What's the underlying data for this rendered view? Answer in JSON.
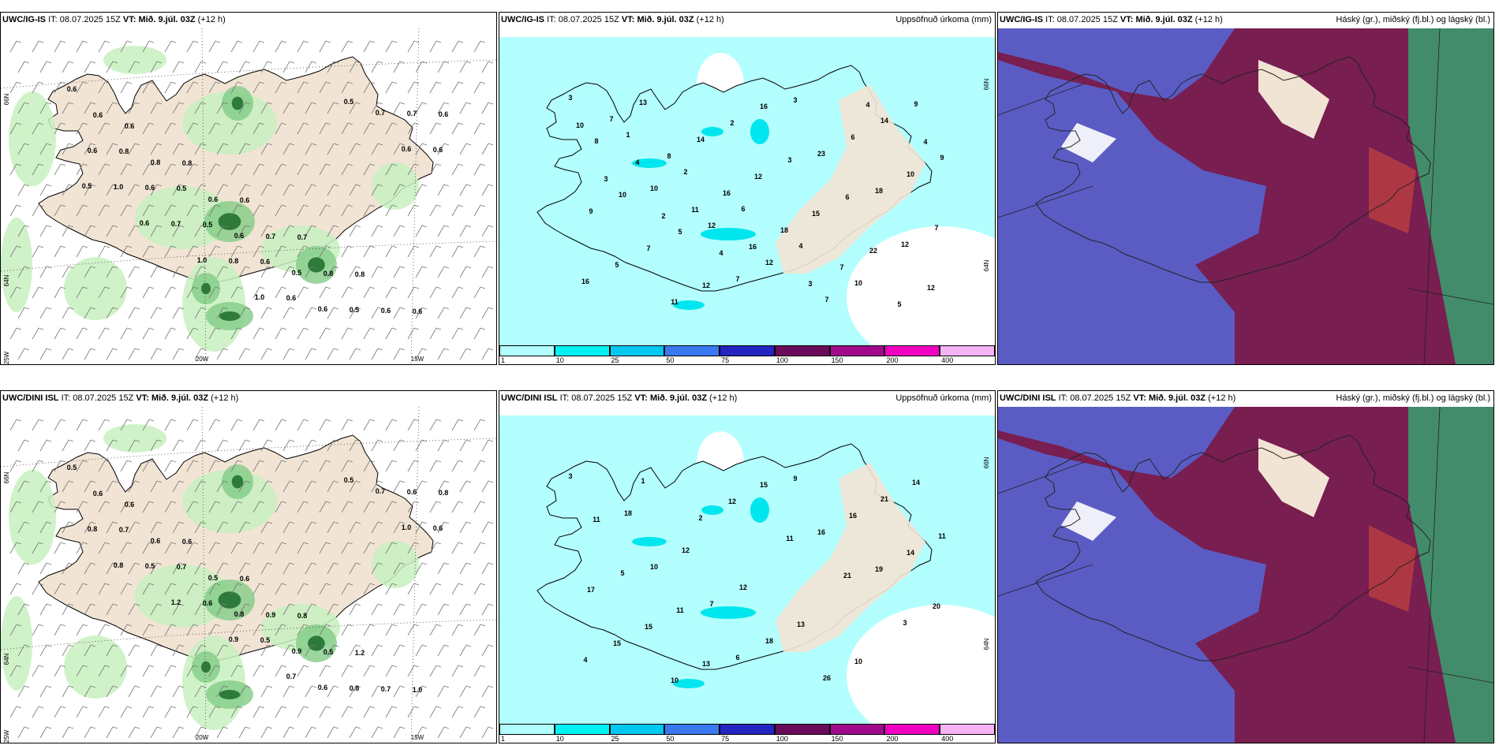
{
  "panels": [
    {
      "id": "ig-precip",
      "model": "UWC/IG-IS",
      "it_label": "IT:",
      "it": "08.07.2025 15Z",
      "vt_label": "VT:",
      "vt": "Mið. 9.júl. 03Z",
      "lead": "(+12 h)",
      "right_title": "",
      "kind": "wind",
      "values": [
        "0.6",
        "0.6",
        "0.8",
        "0.6",
        "0.7",
        "0.8",
        "0.6",
        "0.6",
        "0.8",
        "0.6",
        "0.7",
        "0.8",
        "0.6",
        "0.6",
        "0.8",
        "0.5",
        "0.6",
        "0.5",
        "0.5",
        "0.7",
        "0.6",
        "0.6",
        "0.5",
        "0.6",
        "0.6",
        "0.7",
        "0.6",
        "1.0",
        "0.7",
        "0.8",
        "0.6",
        "0.5",
        "0.6",
        "0.5",
        "0.6",
        "1.0",
        "1.0"
      ],
      "grid": [
        "20W",
        "15W",
        "66N",
        "64N",
        "25W"
      ]
    },
    {
      "id": "ig-accum",
      "model": "UWC/IG-IS",
      "it_label": "IT:",
      "it": "08.07.2025 15Z",
      "vt_label": "VT:",
      "vt": "Mið. 9.júl. 03Z",
      "lead": "(+12 h)",
      "right_title": "Uppsöfnuð úrkoma (mm)",
      "kind": "precip",
      "values": [
        "3",
        "1",
        "2",
        "6",
        "4",
        "10",
        "9",
        "8",
        "10",
        "12",
        "12",
        "7",
        "14",
        "9",
        "10",
        "5",
        "7",
        "3",
        "6",
        "10",
        "9",
        "7",
        "12",
        "16",
        "23",
        "18",
        "7",
        "5",
        "11",
        "2",
        "3",
        "6",
        "12",
        "16",
        "13",
        "14",
        "12",
        "15",
        "22",
        "12",
        "7",
        "8",
        "16",
        "18",
        "7",
        "5",
        "10",
        "4",
        "11",
        "16",
        "3",
        "4",
        "4",
        "3",
        "2",
        "4"
      ],
      "grid": [
        "66N",
        "64N"
      ],
      "colorbar": {
        "labels": [
          "1",
          "10",
          "25",
          "50",
          "75",
          "100",
          "150",
          "200",
          "400"
        ],
        "colors": [
          "#b3fefe",
          "#00f2f2",
          "#00c8f0",
          "#3a78f0",
          "#2424c0",
          "#6a0a5a",
          "#a00a8a",
          "#f000c0",
          "#f5b2f5"
        ]
      }
    },
    {
      "id": "ig-cloud",
      "model": "UWC/IG-IS",
      "it_label": "IT:",
      "it": "08.07.2025 15Z",
      "vt_label": "VT:",
      "vt": "Mið. 9.júl. 03Z",
      "lead": "(+12 h)",
      "right_title": "Háský (gr.), miðský (fj.bl.) og lágský (bl.)",
      "kind": "cloud"
    },
    {
      "id": "dini-precip",
      "model": "UWC/DINI ISL",
      "it_label": "IT:",
      "it": "08.07.2025 15Z",
      "vt_label": "VT:",
      "vt": "Mið. 9.júl. 03Z",
      "lead": "(+12 h)",
      "right_title": "",
      "kind": "wind",
      "values": [
        "0.5",
        "0.6",
        "0.6",
        "0.6",
        "0.8",
        "1.2",
        "1.0",
        "0.6",
        "0.6",
        "0.5",
        "0.9",
        "0.5",
        "0.7",
        "0.8",
        "0.7",
        "0.7",
        "0.8",
        "0.9",
        "0.8",
        "0.6",
        "0.8",
        "0.5",
        "0.6",
        "0.5",
        "0.6",
        "0.7",
        "0.6",
        "0.8",
        "1.2",
        "0.9",
        "0.7",
        "0.5",
        "1.0"
      ],
      "grid": [
        "20W",
        "15W",
        "66N",
        "64N",
        "25W"
      ]
    },
    {
      "id": "dini-accum",
      "model": "UWC/DINI ISL",
      "it_label": "IT:",
      "it": "08.07.2025 15Z",
      "vt_label": "VT:",
      "vt": "Mið. 9.júl. 03Z",
      "lead": "(+12 h)",
      "right_title": "Uppsöfnuð úrkoma (mm)",
      "kind": "precip",
      "values": [
        "3",
        "18",
        "12",
        "12",
        "13",
        "10",
        "14",
        "11",
        "10",
        "7",
        "18",
        "26",
        "21",
        "11",
        "5",
        "11",
        "6",
        "9",
        "16",
        "14",
        "17",
        "15",
        "13",
        "15",
        "16",
        "19",
        "20",
        "15",
        "10",
        "12",
        "11",
        "21",
        "3",
        "4",
        "1",
        "2"
      ],
      "grid": [
        "66N",
        "64N"
      ],
      "colorbar": {
        "labels": [
          "1",
          "10",
          "25",
          "50",
          "75",
          "100",
          "150",
          "200",
          "400"
        ],
        "colors": [
          "#b3fefe",
          "#00f2f2",
          "#00c8f0",
          "#3a78f0",
          "#2424c0",
          "#6a0a5a",
          "#a00a8a",
          "#f000c0",
          "#f5b2f5"
        ]
      }
    },
    {
      "id": "dini-cloud",
      "model": "UWC/DINI ISL",
      "it_label": "IT:",
      "it": "08.07.2025 15Z",
      "vt_label": "VT:",
      "vt": "Mið. 9.júl. 03Z",
      "lead": "(+12 h)",
      "right_title": "Háský (gr.), miðský (fj.bl.) og lágský (bl.)",
      "kind": "cloud"
    }
  ],
  "colors": {
    "land": "#f2e4d4",
    "precip_light": "#c8f0c0",
    "precip_mid": "#82cc86",
    "precip_dark": "#2e7a3a",
    "accum_sea": "#b3fefe",
    "cloud_low": "#5a5cc4",
    "cloud_mid": "#7a1a4a",
    "cloud_high": "#3aa070"
  }
}
